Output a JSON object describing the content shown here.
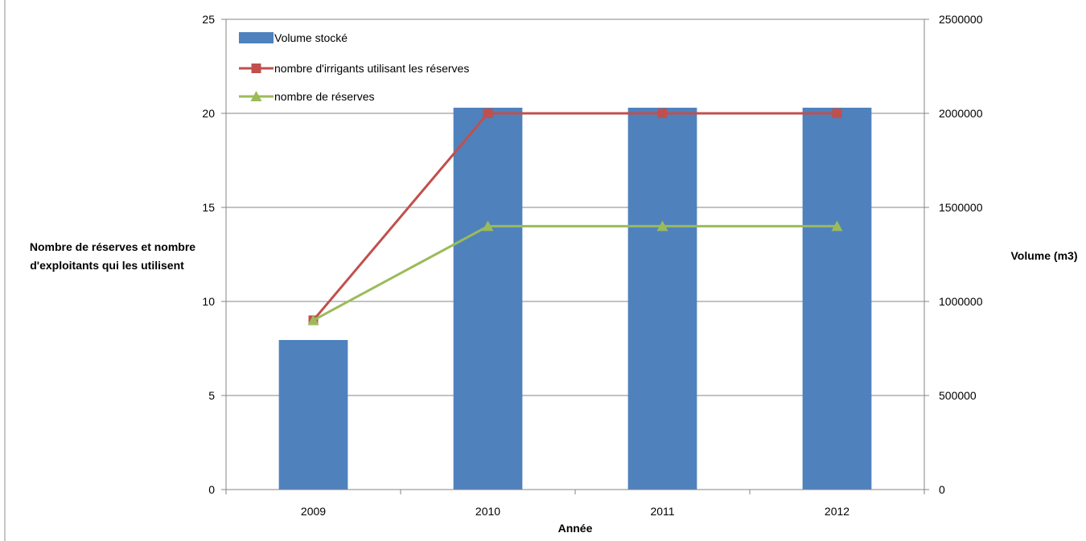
{
  "chart_data": {
    "type": "bar",
    "categories": [
      "2009",
      "2010",
      "2011",
      "2012"
    ],
    "series": [
      {
        "name": "Volume stocké",
        "type": "bar",
        "axis": "right",
        "values": [
          795000,
          2030000,
          2030000,
          2030000
        ],
        "color": "#4F81BD"
      },
      {
        "name": "nombre d'irrigants utilisant les réserves",
        "type": "line",
        "axis": "left",
        "marker": "square",
        "values": [
          9,
          20,
          20,
          20
        ],
        "color": "#C0504D"
      },
      {
        "name": "nombre de réserves",
        "type": "line",
        "axis": "left",
        "marker": "triangle",
        "values": [
          9,
          14,
          14,
          14
        ],
        "color": "#9BBB59"
      }
    ],
    "xlabel": "Année",
    "ylabel_lines": [
      "Nombre de réserves et nombre",
      "d'exploitants qui les utilisent"
    ],
    "y2label": "Volume (m3)",
    "ylim": [
      0,
      25
    ],
    "yticks": [
      0,
      5,
      10,
      15,
      20,
      25
    ],
    "y2lim": [
      0,
      2500000
    ],
    "y2ticks": [
      "0",
      "500000",
      "1000000",
      "1500000",
      "2000000",
      "2500000"
    ],
    "grid": true,
    "legend_position": "top-left"
  }
}
